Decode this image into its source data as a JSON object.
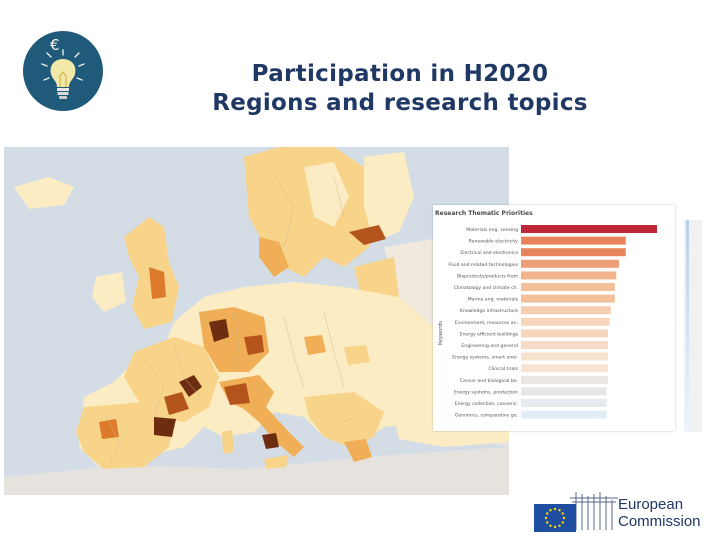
{
  "slide": {
    "title_line1": "Participation in H2020",
    "title_line2": "Regions and research topics"
  },
  "logo": {
    "icon": "lightbulb-euro-icon",
    "symbol": "€",
    "color": "#1f5a7a"
  },
  "map": {
    "type": "choropleth",
    "region": "Europe (NUTS-2 regions)",
    "colors": [
      "#fbecc4",
      "#f7d48a",
      "#f0ae56",
      "#dd7a2c",
      "#b4541d",
      "#6e2c10"
    ]
  },
  "chart_data": {
    "type": "bar",
    "orientation": "horizontal",
    "title": "Research Thematic Priorities",
    "ylabel": "Keywords",
    "categories": [
      "Materials eng. sensing",
      "Renewable electricity",
      "Electrical and electronics",
      "Fluid and related technologies",
      "Bioproducts/products from",
      "Climatology and climate ch.",
      "Marine eng. materials",
      "Knowledge infrastructure",
      "Environment, resources an.",
      "Energy efficient buildings",
      "Engineering and general",
      "Energy systems, smart ener.",
      "Clinical trials",
      "Cancer and biological bo.",
      "Energy systems, production",
      "Energy collection, conversi.",
      "Genomics, comparative ge."
    ],
    "values": [
      100,
      77,
      77,
      72,
      70,
      69,
      69,
      66,
      65,
      64,
      64,
      64,
      64,
      64,
      63,
      63,
      63
    ],
    "bar_colors": [
      "#c0283a",
      "#e8845c",
      "#e8845c",
      "#ee9f76",
      "#f2b38c",
      "#f4c09a",
      "#f4c09a",
      "#f5cdb0",
      "#f6d6bc",
      "#f6d6bc",
      "#f6dcc6",
      "#f7e0cc",
      "#f8e4d4",
      "#eae6e4",
      "#e6e6e6",
      "#e4eaf0",
      "#e2eef6"
    ]
  },
  "footer": {
    "org_line1": "European",
    "org_line2": "Commission",
    "flag_color": "#1f4ea1",
    "star_color": "#ffdd00"
  }
}
